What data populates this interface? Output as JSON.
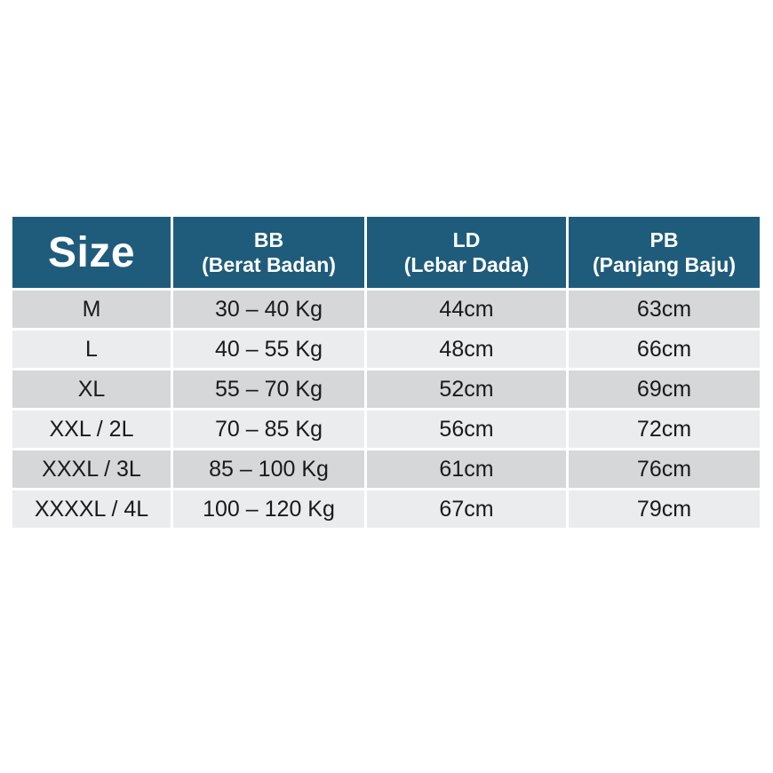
{
  "colors": {
    "page_bg": "#ffffff",
    "header_bg": "#1f5c7b",
    "header_text": "#ffffff",
    "row_dark": "#d5d7d9",
    "row_light": "#eaecee",
    "body_text": "#1a1a1a",
    "divider": "#ffffff"
  },
  "size_chart": {
    "header": {
      "size": "Size",
      "bb_abbr": "BB",
      "bb_full": "(Berat Badan)",
      "ld_abbr": "LD",
      "ld_full": "(Lebar Dada)",
      "pb_abbr": "PB",
      "pb_full": "(Panjang Baju)"
    },
    "rows": [
      {
        "size": "M",
        "bb": "30 – 40 Kg",
        "ld": "44cm",
        "pb": "63cm"
      },
      {
        "size": "L",
        "bb": "40 – 55 Kg",
        "ld": "48cm",
        "pb": "66cm"
      },
      {
        "size": "XL",
        "bb": "55 – 70 Kg",
        "ld": "52cm",
        "pb": "69cm"
      },
      {
        "size": "XXL / 2L",
        "bb": "70 – 85 Kg",
        "ld": "56cm",
        "pb": "72cm"
      },
      {
        "size": "XXXL / 3L",
        "bb": "85 – 100 Kg",
        "ld": "61cm",
        "pb": "76cm"
      },
      {
        "size": "XXXXL / 4L",
        "bb": "100 – 120 Kg",
        "ld": "67cm",
        "pb": "79cm"
      }
    ]
  }
}
